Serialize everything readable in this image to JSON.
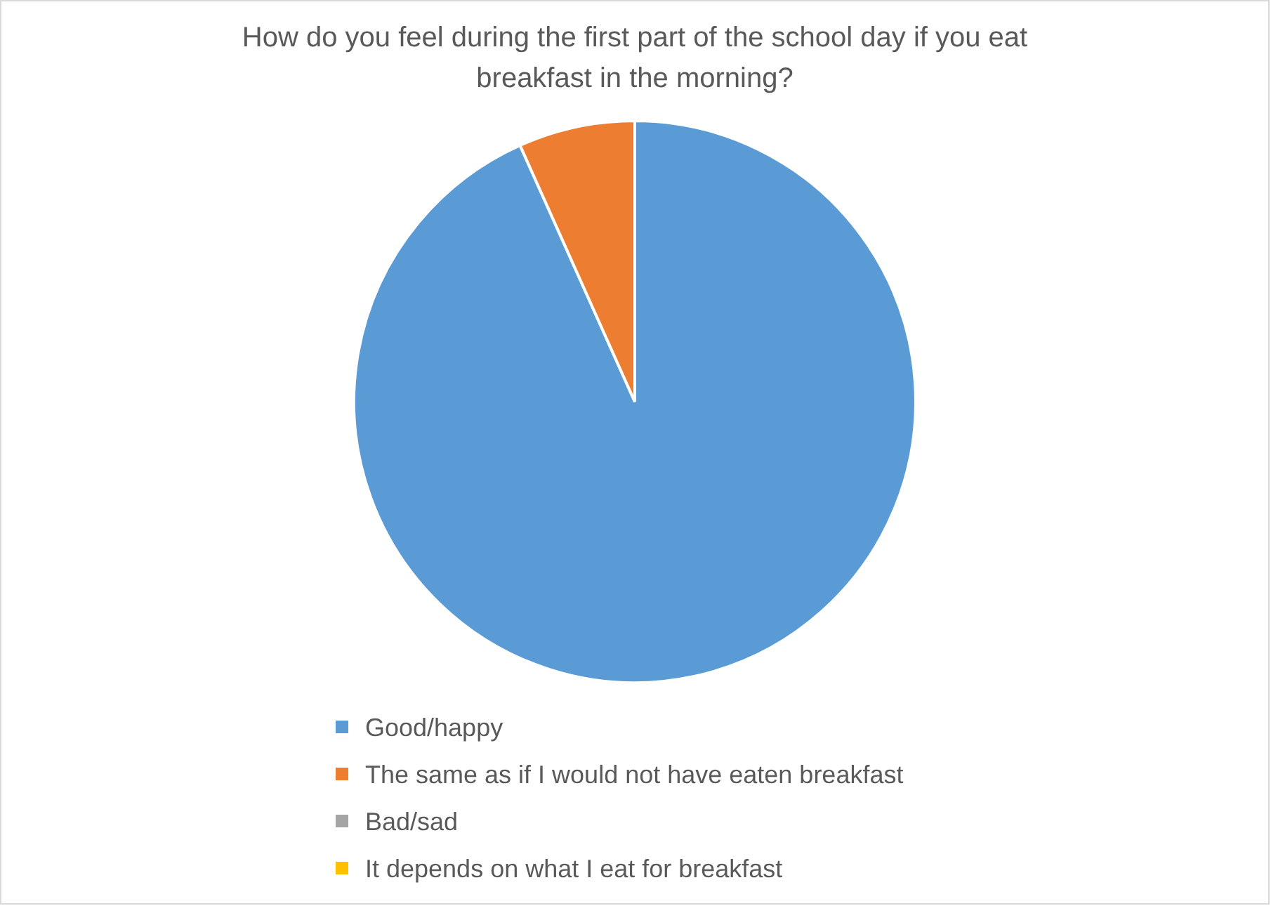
{
  "chart_data": {
    "type": "pie",
    "title": "How do you feel during the first part of the school day if you eat breakfast in the morning?",
    "categories": [
      "Good/happy",
      "The same as if I would not have eaten breakfast",
      "Bad/sad",
      "It depends on what I eat for breakfast"
    ],
    "values": [
      93.3,
      6.7,
      0,
      0
    ],
    "colors": [
      "#5b9bd5",
      "#ed7d31",
      "#a5a5a5",
      "#ffc000"
    ],
    "legend": "bottom"
  }
}
